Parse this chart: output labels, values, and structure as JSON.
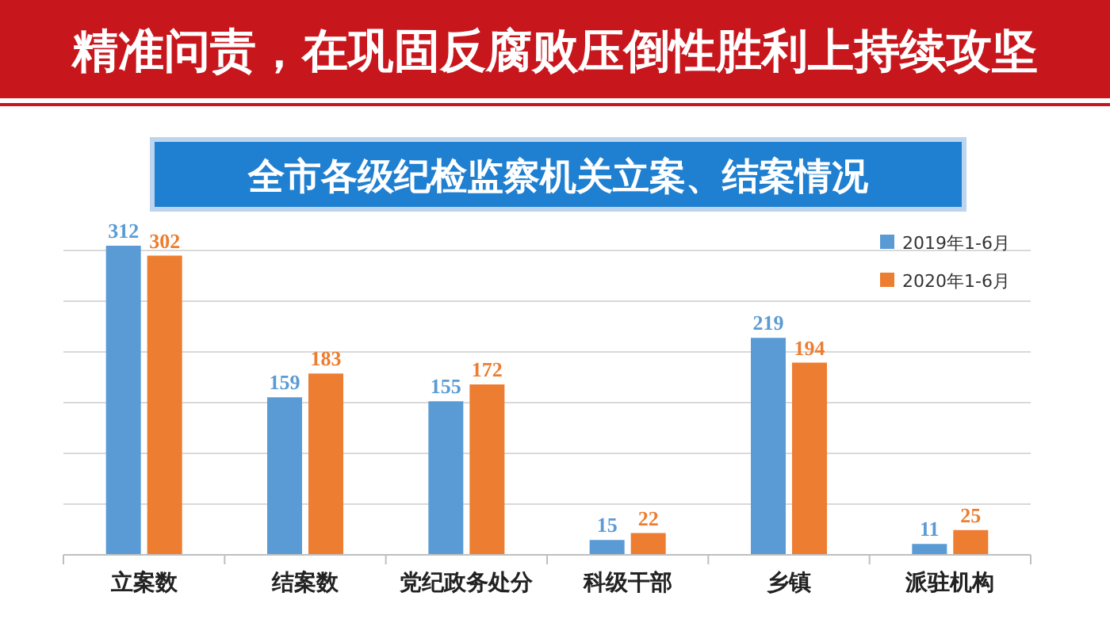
{
  "chart_data": {
    "type": "bar",
    "title": "精准问责，在巩固反腐败压倒性胜利上持续攻坚",
    "subtitle": "全市各级纪检监察机关立案、结案情况",
    "categories": [
      "立案数",
      "结案数",
      "党纪政务处分",
      "科级干部",
      "乡镇",
      "派驻机构"
    ],
    "series": [
      {
        "name": "2019年1-6月",
        "color": "#5b9bd5",
        "values": [
          312,
          159,
          155,
          15,
          219,
          11
        ]
      },
      {
        "name": "2020年1-6月",
        "color": "#ed7d31",
        "values": [
          302,
          183,
          172,
          22,
          194,
          25
        ]
      }
    ],
    "data_labels": true,
    "grid": "y",
    "legend": "top right"
  }
}
